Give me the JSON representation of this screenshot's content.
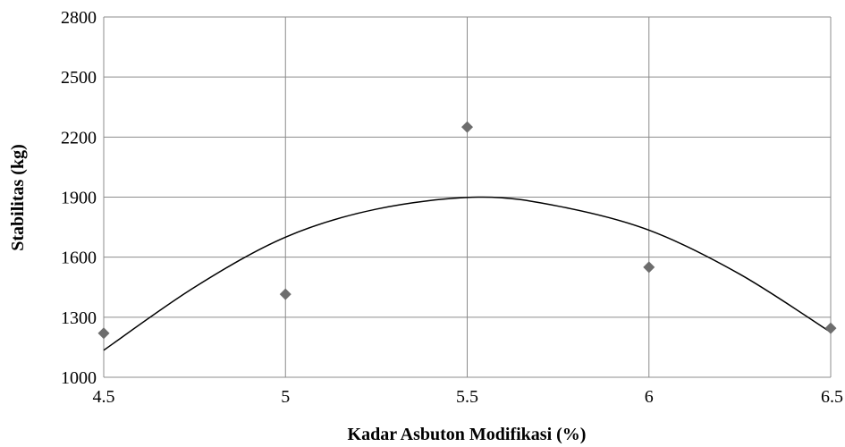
{
  "chart_data": {
    "type": "scatter",
    "title": "",
    "xlabel": "Kadar Asbuton Modifikasi (%)",
    "ylabel": "Stabilitas (kg)",
    "xlim": [
      4.5,
      6.5
    ],
    "ylim": [
      1000,
      2800
    ],
    "xticks": [
      "4.5",
      "5",
      "5.5",
      "6",
      "6.5"
    ],
    "yticks": [
      "1000",
      "1300",
      "1600",
      "1900",
      "2200",
      "2500",
      "2800"
    ],
    "grid": true,
    "legend": "none",
    "series": [
      {
        "marker": "diamond",
        "color": "#6d6d6d",
        "x": [
          4.5,
          5.0,
          5.5,
          6.0,
          6.5
        ],
        "y": [
          1220,
          1415,
          2250,
          1550,
          1245
        ]
      }
    ],
    "trendline": {
      "type": "polynomial-2",
      "color": "#000000",
      "x": [
        4.5,
        4.75,
        5.0,
        5.25,
        5.53,
        5.75,
        6.0,
        6.25,
        6.5
      ],
      "y": [
        1135,
        1450,
        1700,
        1840,
        1900,
        1855,
        1735,
        1515,
        1225
      ]
    }
  }
}
